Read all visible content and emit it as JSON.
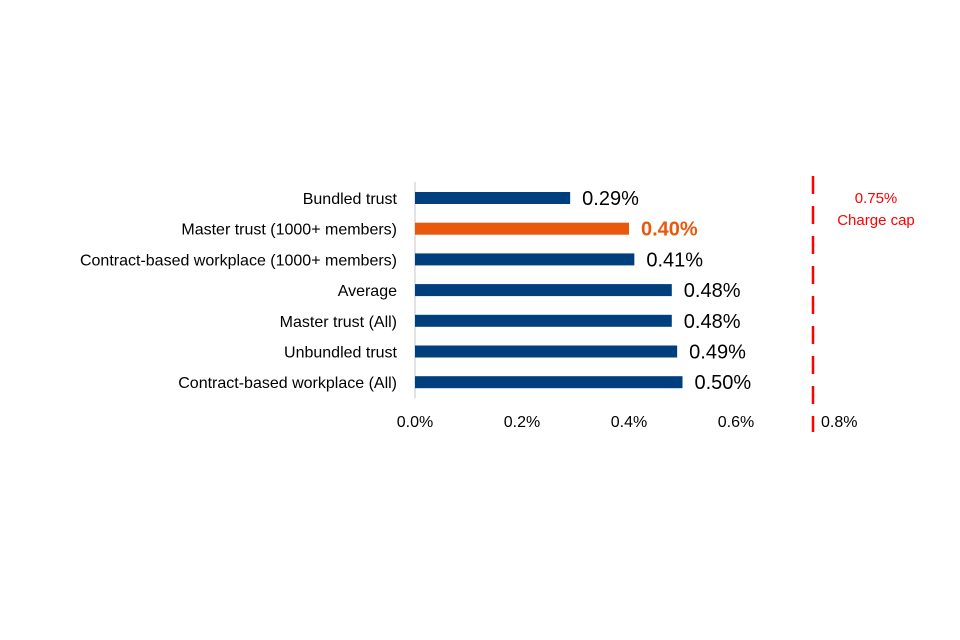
{
  "chart_data": {
    "type": "bar",
    "orientation": "horizontal",
    "title": "",
    "xlabel": "",
    "ylabel": "",
    "categories": [
      "Bundled trust",
      "Master trust (1000+ members)",
      "Contract-based workplace (1000+ members)",
      "Average",
      "Master trust (All)",
      "Unbundled trust",
      "Contract-based workplace (All)"
    ],
    "values": [
      0.29,
      0.4,
      0.41,
      0.48,
      0.48,
      0.49,
      0.5
    ],
    "value_labels": [
      "0.29%",
      "0.40%",
      "0.41%",
      "0.48%",
      "0.48%",
      "0.49%",
      "0.50%"
    ],
    "highlight_index": 1,
    "x_ticks": [
      {
        "value": 0.0,
        "label": "0.0%"
      },
      {
        "value": 0.2,
        "label": "0.2%"
      },
      {
        "value": 0.4,
        "label": "0.4%"
      },
      {
        "value": 0.6,
        "label": "0.6%"
      },
      {
        "value": 0.8,
        "label": "0.8%"
      }
    ],
    "xlim": [
      0,
      0.8
    ],
    "axis_break": {
      "from": 0.65,
      "to": 0.75
    },
    "reference_line": {
      "value": 0.75,
      "label_lines": [
        "0.75%",
        "Charge cap"
      ],
      "style": "dashed",
      "color": "#ff0000"
    },
    "grid": false,
    "legend": "none",
    "colors": {
      "bar": "#003f7d",
      "highlight": "#e8590c",
      "reference": "#ff0000",
      "text": "#000000",
      "axis": "#d9d9d9"
    }
  }
}
